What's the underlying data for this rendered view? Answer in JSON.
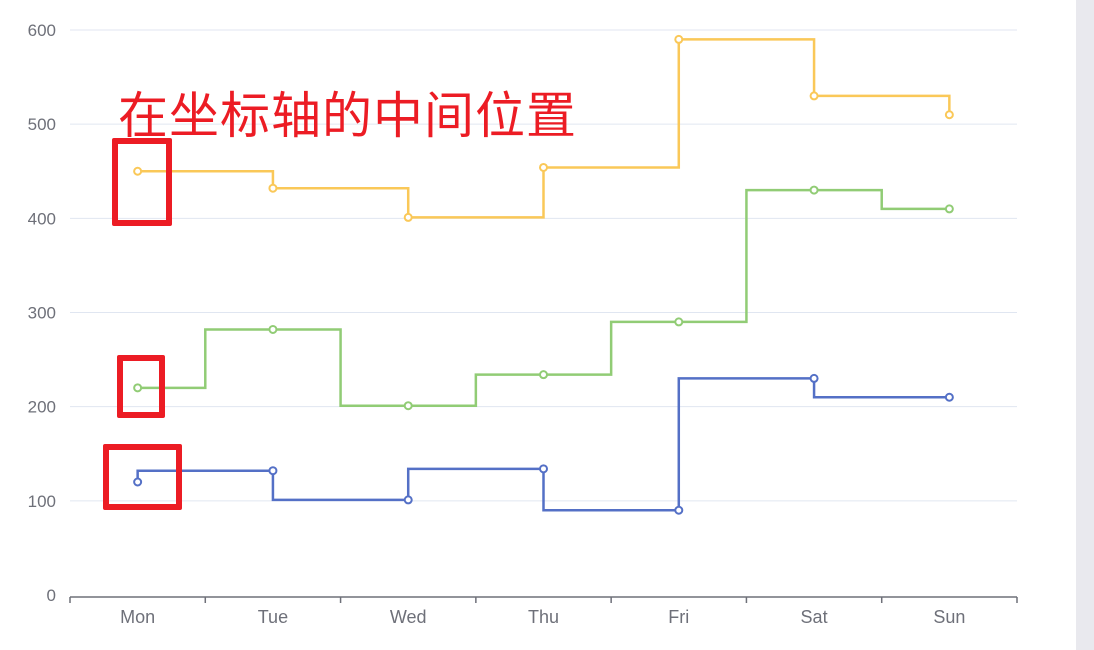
{
  "chart_data": {
    "type": "line",
    "step": true,
    "categories": [
      "Mon",
      "Tue",
      "Wed",
      "Thu",
      "Fri",
      "Sat",
      "Sun"
    ],
    "ylim": [
      0,
      600
    ],
    "yticks": [
      0,
      100,
      200,
      300,
      400,
      500,
      600
    ],
    "grid": true,
    "series": [
      {
        "step": "start",
        "color": "#5470c6",
        "values": [
          120,
          132,
          101,
          134,
          90,
          230,
          210
        ]
      },
      {
        "step": "middle",
        "color": "#91cc75",
        "values": [
          220,
          282,
          201,
          234,
          290,
          430,
          410
        ]
      },
      {
        "step": "end",
        "color": "#fac858",
        "values": [
          450,
          432,
          401,
          454,
          590,
          530,
          510
        ]
      }
    ]
  },
  "annotation": {
    "text": "在坐标轴的中间位置",
    "color": "#ec1c24"
  }
}
